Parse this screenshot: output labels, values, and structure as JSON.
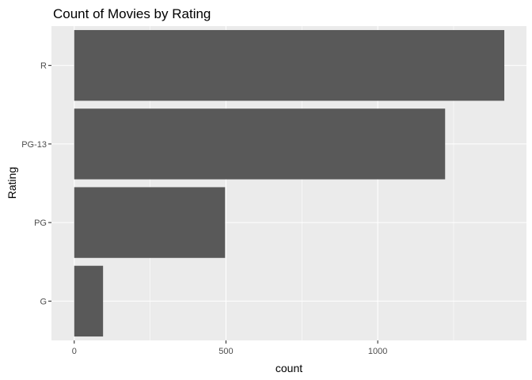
{
  "chart_data": {
    "type": "bar",
    "orientation": "horizontal",
    "title": "Count of Movies by Rating",
    "xlabel": "count",
    "ylabel": "Rating",
    "categories": [
      "G",
      "PG",
      "PG-13",
      "R"
    ],
    "values": [
      95,
      497,
      1222,
      1417
    ],
    "xlim": [
      -75,
      1490
    ],
    "xticks": [
      0,
      500,
      1000
    ],
    "xtick_labels": [
      "0",
      "500",
      "1000"
    ],
    "grid": true,
    "legend": "none",
    "colors": {
      "panel": "#ebebeb",
      "grid": "#ffffff",
      "bar": "#595959",
      "tick": "#333333"
    }
  }
}
